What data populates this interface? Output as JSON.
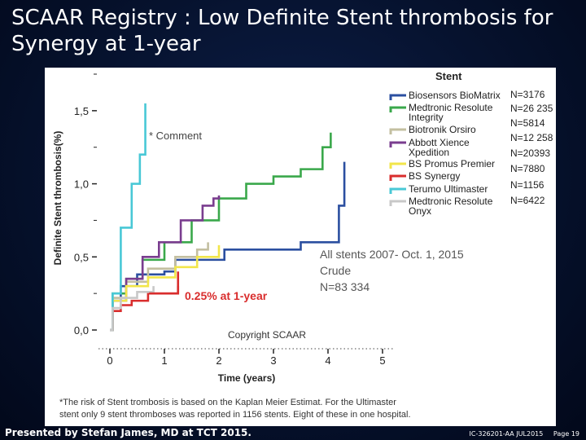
{
  "slide": {
    "title_line1": "SCAAR Registry : Low Definite Stent thrombosis for",
    "title_line2": "Synergy at 1-year",
    "footer_presenter": "Presented by Stefan James, MD at TCT 2015.",
    "footer_code": "IC-326201-AA JUL2015",
    "footer_page": "Page 19"
  },
  "chart_data": {
    "type": "line",
    "xlabel": "Time (years)",
    "ylabel": "Definite Stent thrombosis(%)",
    "xlim": [
      0,
      5
    ],
    "ylim": [
      0,
      1.75
    ],
    "x_ticks": [
      "0",
      "1",
      "2",
      "3",
      "4",
      "5"
    ],
    "y_ticks": [
      "0,0",
      "0,5",
      "1,0",
      "1,5"
    ],
    "legend_title": "Stent",
    "legend_position": "top-right",
    "annotations": {
      "comment": "* Comment",
      "marker_label": "0.25% at 1-year",
      "all_stents_line1": "All stents 2007- Oct. 1, 2015",
      "all_stents_line2": "Crude",
      "all_stents_line3": "N=83 334",
      "copyright": "Copyright SCAAR",
      "footnote_line1": "*The risk of Stent trombosis is based on the Kaplan Meier Estimat. For the Ultimaster",
      "footnote_line2": "stent only 9 stent thromboses was reported in 1156 stents. Eight of these in one hospital."
    },
    "series": [
      {
        "name": "Biosensors BioMatrix",
        "n": "N=3176",
        "color": "#2b4fa0",
        "points": [
          [
            0,
            0
          ],
          [
            0.05,
            0.2
          ],
          [
            0.2,
            0.3
          ],
          [
            0.5,
            0.38
          ],
          [
            1.0,
            0.4
          ],
          [
            1.2,
            0.48
          ],
          [
            2.1,
            0.55
          ],
          [
            3.5,
            0.6
          ],
          [
            4.2,
            0.85
          ],
          [
            4.3,
            1.15
          ]
        ]
      },
      {
        "name": "Medtronic Resolute Integrity",
        "n": "N=26 235",
        "color": "#3aa84b",
        "points": [
          [
            0,
            0
          ],
          [
            0.05,
            0.25
          ],
          [
            0.3,
            0.35
          ],
          [
            0.6,
            0.48
          ],
          [
            1.0,
            0.6
          ],
          [
            1.5,
            0.75
          ],
          [
            2.0,
            0.9
          ],
          [
            2.5,
            1.0
          ],
          [
            3.0,
            1.05
          ],
          [
            3.5,
            1.1
          ],
          [
            3.9,
            1.25
          ],
          [
            4.05,
            1.35
          ]
        ]
      },
      {
        "name": "Biotronik Orsiro",
        "n": "N=5814",
        "color": "#c3bfa0",
        "points": [
          [
            0,
            0
          ],
          [
            0.05,
            0.22
          ],
          [
            0.3,
            0.33
          ],
          [
            0.7,
            0.42
          ],
          [
            1.2,
            0.5
          ],
          [
            1.6,
            0.55
          ],
          [
            1.8,
            0.6
          ]
        ]
      },
      {
        "name": "Abbott Xience Xpedition",
        "n": "N=12 258",
        "color": "#7a3d8f",
        "points": [
          [
            0,
            0
          ],
          [
            0.05,
            0.2
          ],
          [
            0.3,
            0.35
          ],
          [
            0.6,
            0.5
          ],
          [
            0.9,
            0.6
          ],
          [
            1.3,
            0.75
          ],
          [
            1.7,
            0.85
          ],
          [
            1.9,
            0.9
          ],
          [
            2.0,
            0.92
          ]
        ]
      },
      {
        "name": "BS Promus Premier",
        "n": "N=20393",
        "color": "#f2e64a",
        "points": [
          [
            0,
            0
          ],
          [
            0.05,
            0.2
          ],
          [
            0.3,
            0.3
          ],
          [
            0.7,
            0.36
          ],
          [
            1.2,
            0.43
          ],
          [
            1.6,
            0.5
          ],
          [
            2.0,
            0.58
          ]
        ]
      },
      {
        "name": "BS Synergy",
        "n": "N=7880",
        "color": "#d92d2d",
        "points": [
          [
            0,
            0
          ],
          [
            0.05,
            0.13
          ],
          [
            0.2,
            0.17
          ],
          [
            0.4,
            0.2
          ],
          [
            0.7,
            0.25
          ],
          [
            1.0,
            0.25
          ],
          [
            1.25,
            0.3
          ]
        ]
      },
      {
        "name": "Terumo Ultimaster",
        "n": "N=1156",
        "color": "#49c8d6",
        "points": [
          [
            0,
            0
          ],
          [
            0.05,
            0.25
          ],
          [
            0.2,
            0.7
          ],
          [
            0.4,
            1.0
          ],
          [
            0.55,
            1.2
          ],
          [
            0.65,
            1.55
          ]
        ]
      },
      {
        "name": "Medtronic Resolute Onyx",
        "n": "N=6422",
        "color": "#c8c8c8",
        "points": [
          [
            0,
            0
          ],
          [
            0.05,
            0.15
          ],
          [
            0.2,
            0.22
          ],
          [
            0.5,
            0.26
          ],
          [
            0.8,
            0.3
          ]
        ]
      }
    ]
  }
}
